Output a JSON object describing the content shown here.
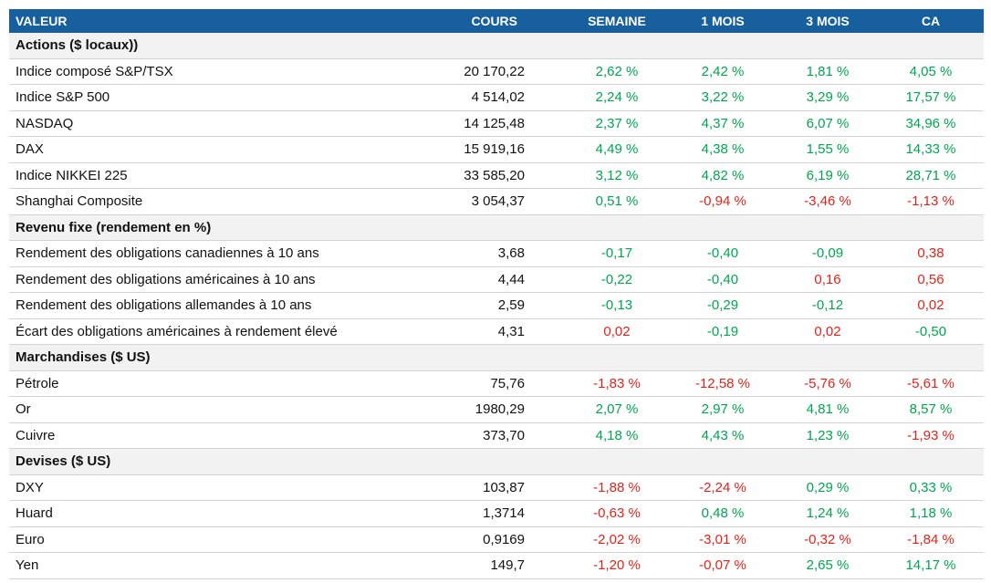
{
  "palette": {
    "green": "#00a651",
    "red": "#e2231a"
  },
  "table": {
    "header": [
      "VALEUR",
      "COURS",
      "SEMAINE",
      "1 MOIS",
      "3 MOIS",
      "CA"
    ],
    "sections": [
      {
        "title": "Actions ($ locaux))",
        "rows": [
          {
            "label": "Indice composé S&P/TSX",
            "cours": "20 170,22",
            "changes": [
              "2,62 %",
              "2,42 %",
              "1,81 %",
              "4,05 %"
            ],
            "tones": [
              "green",
              "green",
              "green",
              "green"
            ]
          },
          {
            "label": "Indice S&P 500",
            "cours": "4 514,02",
            "changes": [
              "2,24 %",
              "3,22 %",
              "3,29 %",
              "17,57 %"
            ],
            "tones": [
              "green",
              "green",
              "green",
              "green"
            ]
          },
          {
            "label": "NASDAQ",
            "cours": "14 125,48",
            "changes": [
              "2,37 %",
              "4,37 %",
              "6,07 %",
              "34,96 %"
            ],
            "tones": [
              "green",
              "green",
              "green",
              "green"
            ]
          },
          {
            "label": "DAX",
            "cours": "15 919,16",
            "changes": [
              "4,49 %",
              "4,38 %",
              "1,55 %",
              "14,33 %"
            ],
            "tones": [
              "green",
              "green",
              "green",
              "green"
            ]
          },
          {
            "label": "Indice NIKKEI 225",
            "cours": "33 585,20",
            "changes": [
              "3,12 %",
              "4,82 %",
              "6,19 %",
              "28,71 %"
            ],
            "tones": [
              "green",
              "green",
              "green",
              "green"
            ]
          },
          {
            "label": "Shanghai Composite",
            "cours": "3 054,37",
            "changes": [
              "0,51 %",
              "-0,94 %",
              "-3,46 %",
              "-1,13 %"
            ],
            "tones": [
              "green",
              "red",
              "red",
              "red"
            ]
          }
        ]
      },
      {
        "title": "Revenu fixe (rendement en %)",
        "rows": [
          {
            "label": "Rendement des obligations canadiennes à 10 ans",
            "cours": "3,68",
            "changes": [
              "-0,17",
              "-0,40",
              "-0,09",
              "0,38"
            ],
            "tones": [
              "green",
              "green",
              "green",
              "red"
            ]
          },
          {
            "label": "Rendement des obligations américaines à 10 ans",
            "cours": "4,44",
            "changes": [
              "-0,22",
              "-0,40",
              "0,16",
              "0,56"
            ],
            "tones": [
              "green",
              "green",
              "red",
              "red"
            ]
          },
          {
            "label": "Rendement des obligations allemandes à 10 ans",
            "cours": "2,59",
            "changes": [
              "-0,13",
              "-0,29",
              "-0,12",
              "0,02"
            ],
            "tones": [
              "green",
              "green",
              "green",
              "red"
            ]
          },
          {
            "label": "Écart des obligations américaines à rendement élevé",
            "cours": "4,31",
            "changes": [
              "0,02",
              "-0,19",
              "0,02",
              "-0,50"
            ],
            "tones": [
              "red",
              "green",
              "red",
              "green"
            ]
          }
        ]
      },
      {
        "title": "Marchandises ($ US)",
        "rows": [
          {
            "label": "Pétrole",
            "cours": "75,76",
            "changes": [
              "-1,83 %",
              "-12,58 %",
              "-5,76 %",
              "-5,61 %"
            ],
            "tones": [
              "red",
              "red",
              "red",
              "red"
            ]
          },
          {
            "label": "Or",
            "cours": "1980,29",
            "changes": [
              "2,07 %",
              "2,97 %",
              "4,81 %",
              "8,57 %"
            ],
            "tones": [
              "green",
              "green",
              "green",
              "green"
            ]
          },
          {
            "label": "Cuivre",
            "cours": "373,70",
            "changes": [
              "4,18 %",
              "4,43 %",
              "1,23 %",
              "-1,93 %"
            ],
            "tones": [
              "green",
              "green",
              "green",
              "red"
            ]
          }
        ]
      },
      {
        "title": "Devises ($ US)",
        "rows": [
          {
            "label": "DXY",
            "cours": "103,87",
            "changes": [
              "-1,88 %",
              "-2,24 %",
              "0,29 %",
              "0,33 %"
            ],
            "tones": [
              "red",
              "red",
              "green",
              "green"
            ]
          },
          {
            "label": "Huard",
            "cours": "1,3714",
            "changes": [
              "-0,63 %",
              "0,48 %",
              "1,24 %",
              "1,18 %"
            ],
            "tones": [
              "red",
              "green",
              "green",
              "green"
            ]
          },
          {
            "label": "Euro",
            "cours": "0,9169",
            "changes": [
              "-2,02 %",
              "-3,01 %",
              "-0,32 %",
              "-1,84 %"
            ],
            "tones": [
              "red",
              "red",
              "red",
              "red"
            ]
          },
          {
            "label": "Yen",
            "cours": "149,7",
            "changes": [
              "-1,20 %",
              "-0,07 %",
              "2,65 %",
              "14,17 %"
            ],
            "tones": [
              "red",
              "red",
              "green",
              "green"
            ]
          }
        ]
      }
    ]
  }
}
